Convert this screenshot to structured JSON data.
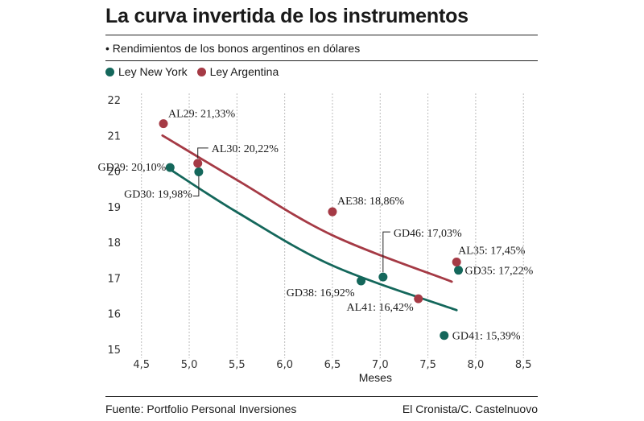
{
  "header": {
    "title": "La curva invertida de los instrumentos",
    "subtitle": "• Rendimientos de los bonos argentinos en dólares"
  },
  "legend": {
    "ny_label": "Ley New York",
    "arg_label": "Ley Argentina"
  },
  "colors": {
    "ny": "#14675b",
    "arg": "#a53a45",
    "grid": "#bdbdbd"
  },
  "footer": {
    "source": "Fuente: Portfolio Personal Inversiones",
    "credit": "El Cronista/C. Castelnuovo"
  },
  "chart_data": {
    "type": "scatter",
    "title": "La curva invertida de los instrumentos",
    "xlabel": "Meses",
    "ylabel": "",
    "xlim": [
      4.3,
      8.65
    ],
    "ylim": [
      15,
      22
    ],
    "x_ticks": [
      4.5,
      5.0,
      5.5,
      6.0,
      6.5,
      7.0,
      7.5,
      8.0,
      8.5
    ],
    "x_tick_labels": [
      "4,5",
      "5,0",
      "5,5",
      "6,0",
      "6,5",
      "7,0",
      "7,5",
      "8,0",
      "8,5"
    ],
    "y_ticks": [
      15,
      16,
      17,
      18,
      19,
      20,
      21,
      22
    ],
    "y_tick_labels": [
      "15",
      "16",
      "17",
      "18",
      "19",
      "20",
      "21",
      "22"
    ],
    "grid": "vertical",
    "series": [
      {
        "name": "Ley New York",
        "points": [
          {
            "label": "GD29: 20,10%",
            "x": 4.8,
            "y": 20.1
          },
          {
            "label": "GD30: 19,98%",
            "x": 5.1,
            "y": 19.98
          },
          {
            "label": "GD38: 16,92%",
            "x": 6.8,
            "y": 16.92
          },
          {
            "label": "GD46: 17,03%",
            "x": 7.03,
            "y": 17.03
          },
          {
            "label": "GD35: 17,22%",
            "x": 7.82,
            "y": 17.22
          },
          {
            "label": "GD41: 15,39%",
            "x": 7.67,
            "y": 15.39
          }
        ],
        "trend": {
          "x": [
            4.8,
            5.5,
            6.5,
            7.8
          ],
          "y": [
            20.05,
            18.85,
            17.35,
            16.1
          ]
        }
      },
      {
        "name": "Ley Argentina",
        "points": [
          {
            "label": "AL29: 21,33%",
            "x": 4.73,
            "y": 21.33
          },
          {
            "label": "AL30: 20,22%",
            "x": 5.09,
            "y": 20.22
          },
          {
            "label": "AE38: 18,86%",
            "x": 6.5,
            "y": 18.86
          },
          {
            "label": "AL41: 16,42%",
            "x": 7.4,
            "y": 16.42
          },
          {
            "label": "AL35: 17,45%",
            "x": 7.8,
            "y": 17.45
          }
        ],
        "trend": {
          "x": [
            4.72,
            5.5,
            6.5,
            7.75
          ],
          "y": [
            21.0,
            19.75,
            18.2,
            16.9
          ]
        }
      }
    ]
  }
}
